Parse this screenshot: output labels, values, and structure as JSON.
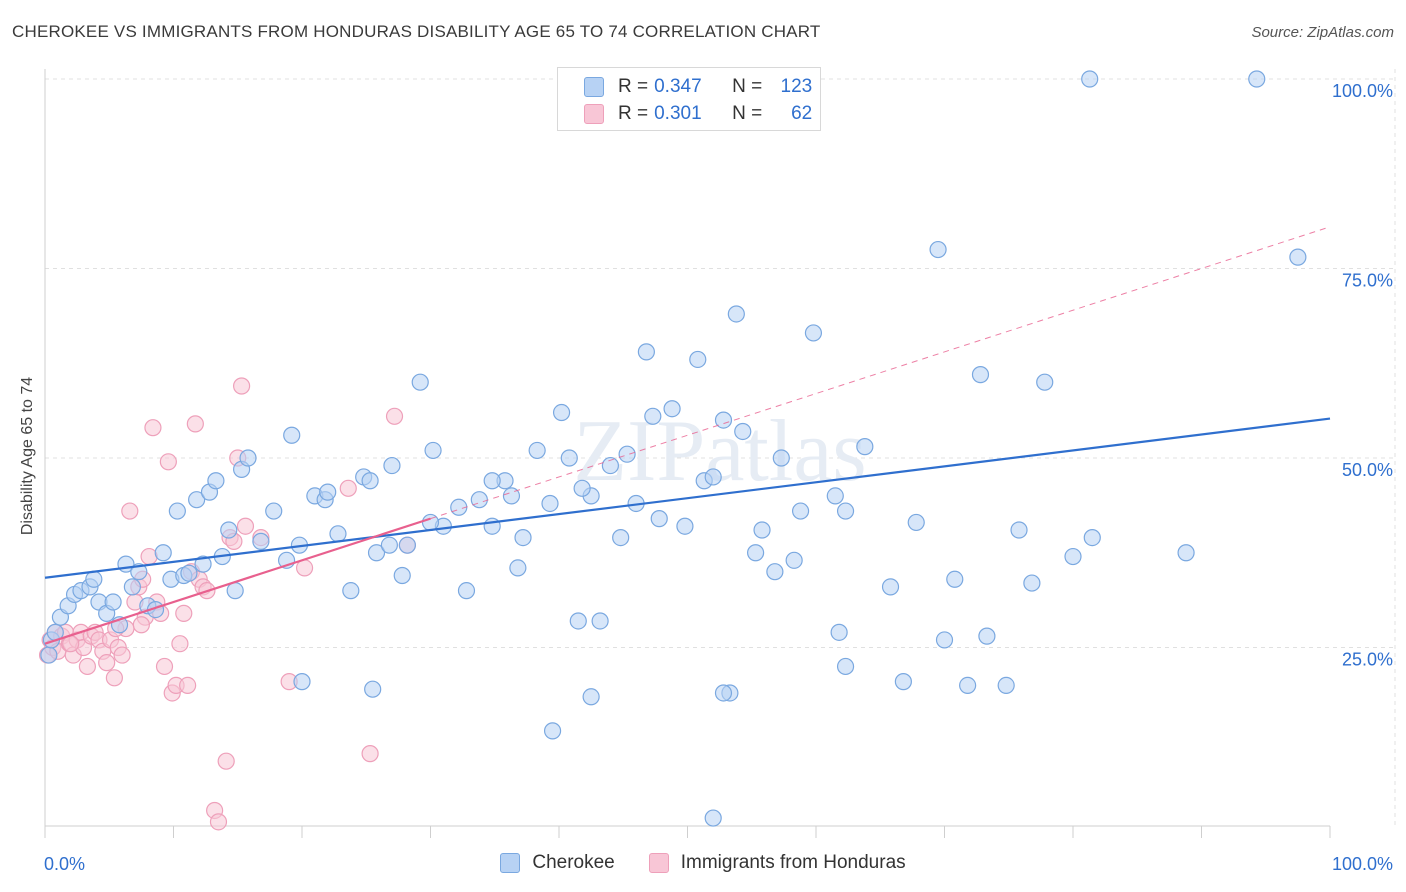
{
  "title": "CHEROKEE VS IMMIGRANTS FROM HONDURAS DISABILITY AGE 65 TO 74 CORRELATION CHART",
  "source": "Source: ZipAtlas.com",
  "watermark": "ZIPatlas",
  "colors": {
    "blue_fill": "#b7d2f4",
    "blue_stroke": "#7aa8e0",
    "blue_line": "#2f6fce",
    "pink_fill": "#f8c6d6",
    "pink_stroke": "#eea0ba",
    "pink_line": "#e8608e",
    "axis_text": "#2f6fce",
    "grid": "#e0e0e0"
  },
  "legend_top": [
    {
      "r_label": "R =",
      "r_value": "0.347",
      "n_label": "N =",
      "n_value": "123"
    },
    {
      "r_label": "R =",
      "r_value": "0.301",
      "n_label": "N =",
      "n_value": "62"
    }
  ],
  "legend_bottom": [
    "Cherokee",
    "Immigrants from Honduras"
  ],
  "chart_data": {
    "type": "scatter",
    "title": "CHEROKEE VS IMMIGRANTS FROM HONDURAS DISABILITY AGE 65 TO 74 CORRELATION CHART",
    "xlabel": "",
    "ylabel": "Disability Age 65 to 74",
    "xlim": [
      0,
      100
    ],
    "ylim": [
      0,
      102
    ],
    "x_tick_labels": [
      "0.0%",
      "100.0%"
    ],
    "y_tick_labels": [
      "25.0%",
      "50.0%",
      "75.0%",
      "100.0%"
    ],
    "y_ticks": [
      25,
      50,
      75,
      100
    ],
    "grid": true,
    "legend_position": "top-center",
    "series": [
      {
        "name": "Cherokee",
        "color": "#7aa8e0",
        "r": 0.347,
        "n": 123,
        "trend": {
          "x": [
            0,
            100
          ],
          "y": [
            34.2,
            55.2
          ]
        },
        "points": [
          [
            0.3,
            24
          ],
          [
            0.5,
            26
          ],
          [
            0.8,
            27
          ],
          [
            1.2,
            29
          ],
          [
            1.8,
            30.5
          ],
          [
            2.3,
            32
          ],
          [
            2.8,
            32.5
          ],
          [
            3.5,
            33
          ],
          [
            3.8,
            34
          ],
          [
            4.2,
            31
          ],
          [
            4.8,
            29.5
          ],
          [
            5.3,
            31
          ],
          [
            5.8,
            28
          ],
          [
            6.3,
            36
          ],
          [
            6.8,
            33
          ],
          [
            7.3,
            35
          ],
          [
            8.0,
            30.5
          ],
          [
            8.6,
            30
          ],
          [
            9.2,
            37.5
          ],
          [
            9.8,
            34
          ],
          [
            10.3,
            43
          ],
          [
            10.8,
            34.5
          ],
          [
            11.2,
            34.8
          ],
          [
            11.8,
            44.5
          ],
          [
            12.3,
            36
          ],
          [
            12.8,
            45.5
          ],
          [
            13.3,
            47
          ],
          [
            13.8,
            37
          ],
          [
            14.3,
            40.5
          ],
          [
            14.8,
            32.5
          ],
          [
            15.3,
            48.5
          ],
          [
            15.8,
            50
          ],
          [
            16.8,
            39
          ],
          [
            17.8,
            43
          ],
          [
            18.8,
            36.5
          ],
          [
            19.2,
            53
          ],
          [
            19.8,
            38.5
          ],
          [
            21.0,
            45
          ],
          [
            21.8,
            44.5
          ],
          [
            22.0,
            45.5
          ],
          [
            22.8,
            40
          ],
          [
            23.8,
            32.5
          ],
          [
            24.8,
            47.5
          ],
          [
            25.3,
            47
          ],
          [
            25.8,
            37.5
          ],
          [
            26.8,
            38.5
          ],
          [
            27.0,
            49
          ],
          [
            27.8,
            34.5
          ],
          [
            28.2,
            38.5
          ],
          [
            29.2,
            60
          ],
          [
            30.2,
            51
          ],
          [
            31.0,
            41
          ],
          [
            32.2,
            43.5
          ],
          [
            32.8,
            32.5
          ],
          [
            33.8,
            44.5
          ],
          [
            34.8,
            41
          ],
          [
            35.8,
            47
          ],
          [
            36.3,
            45
          ],
          [
            37.2,
            39.5
          ],
          [
            38.3,
            51
          ],
          [
            39.3,
            44
          ],
          [
            40.2,
            56
          ],
          [
            40.8,
            50
          ],
          [
            41.5,
            28.5
          ],
          [
            42.5,
            45
          ],
          [
            43.2,
            28.5
          ],
          [
            44.0,
            49
          ],
          [
            44.8,
            39.5
          ],
          [
            45.3,
            50.5
          ],
          [
            46.0,
            44
          ],
          [
            46.8,
            64
          ],
          [
            47.3,
            55.5
          ],
          [
            47.8,
            42
          ],
          [
            48.8,
            56.5
          ],
          [
            49.8,
            41
          ],
          [
            50.8,
            63
          ],
          [
            51.3,
            47
          ],
          [
            52.0,
            47.5
          ],
          [
            52.8,
            55
          ],
          [
            53.8,
            69
          ],
          [
            53.3,
            19
          ],
          [
            54.3,
            53.5
          ],
          [
            55.3,
            37.5
          ],
          [
            55.8,
            40.5
          ],
          [
            56.8,
            35
          ],
          [
            57.3,
            50
          ],
          [
            58.3,
            36.5
          ],
          [
            58.8,
            43
          ],
          [
            59.8,
            66.5
          ],
          [
            61.5,
            45
          ],
          [
            62.3,
            22.5
          ],
          [
            61.8,
            27
          ],
          [
            62.3,
            43
          ],
          [
            63.8,
            51.5
          ],
          [
            65.8,
            33
          ],
          [
            66.8,
            20.5
          ],
          [
            67.8,
            41.5
          ],
          [
            69.5,
            77.5
          ],
          [
            70.8,
            34
          ],
          [
            71.8,
            20
          ],
          [
            72.8,
            61
          ],
          [
            73.3,
            26.5
          ],
          [
            74.8,
            20
          ],
          [
            75.8,
            40.5
          ],
          [
            76.8,
            33.5
          ],
          [
            77.8,
            60
          ],
          [
            80.0,
            37
          ],
          [
            81.5,
            39.5
          ],
          [
            81.3,
            100
          ],
          [
            88.8,
            37.5
          ],
          [
            94.3,
            100
          ],
          [
            97.5,
            76.5
          ],
          [
            70.0,
            26
          ],
          [
            52.0,
            2.5
          ],
          [
            39.5,
            14
          ],
          [
            42.5,
            18.5
          ],
          [
            52.8,
            19
          ],
          [
            25.5,
            19.5
          ],
          [
            20.0,
            20.5
          ],
          [
            36.8,
            35.5
          ],
          [
            30.0,
            41.5
          ],
          [
            34.8,
            47
          ],
          [
            41.8,
            46
          ]
        ]
      },
      {
        "name": "Immigrants from Honduras",
        "color": "#eea0ba",
        "r": 0.301,
        "n": 62,
        "trend": {
          "x": [
            0,
            100
          ],
          "y": [
            25.5,
            80.5
          ]
        },
        "trend_solid_x_max": 30,
        "points": [
          [
            0.2,
            24
          ],
          [
            0.4,
            26
          ],
          [
            0.6,
            25
          ],
          [
            0.8,
            27
          ],
          [
            1.0,
            24.5
          ],
          [
            1.3,
            26.5
          ],
          [
            1.6,
            27
          ],
          [
            1.9,
            25.5
          ],
          [
            2.2,
            24
          ],
          [
            2.5,
            26
          ],
          [
            2.8,
            27
          ],
          [
            3.0,
            25
          ],
          [
            3.3,
            22.5
          ],
          [
            3.6,
            26.5
          ],
          [
            3.9,
            27
          ],
          [
            4.2,
            26
          ],
          [
            4.5,
            24.5
          ],
          [
            4.8,
            23
          ],
          [
            5.1,
            26
          ],
          [
            5.4,
            21
          ],
          [
            5.7,
            25
          ],
          [
            6.0,
            24
          ],
          [
            6.3,
            27.5
          ],
          [
            6.6,
            43
          ],
          [
            7.0,
            31
          ],
          [
            7.3,
            33
          ],
          [
            7.6,
            34
          ],
          [
            7.8,
            29
          ],
          [
            8.1,
            37
          ],
          [
            8.4,
            54
          ],
          [
            8.7,
            31
          ],
          [
            9.0,
            29.5
          ],
          [
            9.3,
            22.5
          ],
          [
            9.6,
            49.5
          ],
          [
            9.9,
            19
          ],
          [
            10.2,
            20
          ],
          [
            10.5,
            25.5
          ],
          [
            10.8,
            29.5
          ],
          [
            11.1,
            20
          ],
          [
            11.4,
            35
          ],
          [
            11.7,
            54.5
          ],
          [
            12.0,
            34
          ],
          [
            12.3,
            33
          ],
          [
            12.6,
            32.5
          ],
          [
            13.2,
            3.5
          ],
          [
            13.5,
            2
          ],
          [
            14.1,
            10
          ],
          [
            14.4,
            39.5
          ],
          [
            14.7,
            39
          ],
          [
            15.0,
            50
          ],
          [
            15.3,
            59.5
          ],
          [
            15.6,
            41
          ],
          [
            16.8,
            39.5
          ],
          [
            19.0,
            20.5
          ],
          [
            20.2,
            35.5
          ],
          [
            23.6,
            46
          ],
          [
            25.3,
            11
          ],
          [
            27.2,
            55.5
          ],
          [
            28.2,
            38.5
          ],
          [
            5.5,
            27.5
          ],
          [
            2.0,
            25.5
          ],
          [
            7.5,
            28
          ]
        ]
      }
    ]
  }
}
